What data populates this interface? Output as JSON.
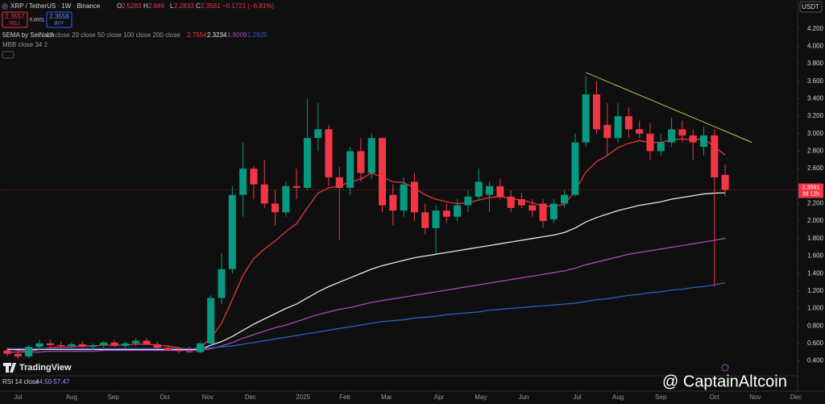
{
  "header": {
    "symbol": "XRP / TetherUS · 1W · Binance",
    "change": "−0.1721 (−6.81%)",
    "sell_price": "2.3557",
    "sell": "SELL",
    "spread": "0.0001",
    "buy_price": "2.3558",
    "buy": "BUY",
    "ema_label": "5EMA by SeiNach",
    "ema_params": "10 close 20 close 50 close 100 close 200 close",
    "mbb": "MBB close 34 2",
    "rsi": "RSI 14 close",
    "rsi_values": "44.50 57.47",
    "countdown": "3d 12h",
    "quote": "USDT",
    "brand": "TradingView",
    "watermark": "@ CaptainAltcoin",
    "o": "O",
    "h": "H",
    "l": "L",
    "c": "C"
  },
  "chart_data": {
    "type": "candlestick",
    "up_color": "#089981",
    "down_color": "#f23645",
    "grid": false,
    "open": [
      0.52,
      0.48,
      0.45,
      0.56,
      0.6,
      0.58,
      0.57,
      0.59,
      0.56,
      0.58,
      0.61,
      0.57,
      0.6,
      0.63,
      0.59,
      0.55,
      0.52,
      0.51,
      0.5,
      0.6,
      1.12,
      1.45,
      2.3,
      2.6,
      2.42,
      2.2,
      2.1,
      2.4,
      2.38,
      2.95,
      3.05,
      2.5,
      2.38,
      2.8,
      2.55,
      2.95,
      2.3,
      2.12,
      2.45,
      2.1,
      1.92,
      2.12,
      2.05,
      2.18,
      2.28,
      2.3,
      2.4,
      2.28,
      2.25,
      2.18,
      2.2,
      2.02,
      2.2,
      2.3,
      2.9,
      3.45,
      3.1,
      2.95,
      3.2,
      3.05,
      3.0,
      2.8,
      2.9,
      3.05,
      2.98,
      2.85,
      2.98,
      2.5283
    ],
    "high": [
      0.55,
      0.52,
      0.58,
      0.64,
      0.64,
      0.62,
      0.61,
      0.62,
      0.6,
      0.63,
      0.64,
      0.62,
      0.66,
      0.66,
      0.62,
      0.58,
      0.55,
      0.56,
      0.62,
      1.15,
      1.63,
      2.4,
      2.9,
      2.63,
      2.7,
      2.35,
      2.45,
      2.6,
      3.4,
      3.35,
      3.1,
      2.62,
      2.85,
      2.95,
      3.0,
      2.96,
      2.42,
      2.5,
      2.55,
      2.2,
      2.18,
      2.2,
      2.25,
      2.35,
      2.6,
      2.45,
      2.48,
      2.35,
      2.32,
      2.25,
      2.25,
      2.25,
      2.35,
      3.0,
      3.66,
      3.6,
      3.35,
      3.35,
      3.3,
      3.15,
      3.12,
      3.0,
      3.18,
      3.15,
      3.05,
      3.08,
      3.05,
      2.646
    ],
    "low": [
      0.45,
      0.42,
      0.43,
      0.52,
      0.55,
      0.54,
      0.53,
      0.55,
      0.52,
      0.55,
      0.56,
      0.54,
      0.57,
      0.58,
      0.54,
      0.51,
      0.49,
      0.49,
      0.49,
      0.58,
      1.05,
      1.4,
      2.05,
      2.25,
      2.15,
      1.95,
      2.05,
      2.25,
      2.35,
      2.8,
      2.4,
      1.78,
      2.3,
      2.45,
      2.48,
      2.1,
      1.95,
      2.05,
      2.0,
      1.85,
      1.62,
      1.98,
      2.0,
      2.1,
      2.25,
      2.1,
      2.25,
      2.1,
      2.15,
      2.05,
      1.92,
      1.98,
      2.15,
      2.28,
      2.85,
      3.0,
      2.75,
      2.9,
      2.95,
      2.95,
      2.7,
      2.75,
      2.85,
      2.9,
      2.7,
      2.75,
      1.25,
      2.2833
    ],
    "close": [
      0.48,
      0.45,
      0.56,
      0.6,
      0.58,
      0.57,
      0.59,
      0.56,
      0.58,
      0.61,
      0.57,
      0.6,
      0.63,
      0.59,
      0.55,
      0.52,
      0.51,
      0.5,
      0.6,
      1.12,
      1.45,
      2.3,
      2.6,
      2.42,
      2.2,
      2.1,
      2.4,
      2.38,
      2.95,
      3.05,
      2.5,
      2.38,
      2.8,
      2.55,
      2.95,
      2.18,
      2.12,
      2.42,
      2.1,
      1.92,
      2.12,
      2.05,
      2.18,
      2.28,
      2.45,
      2.4,
      2.28,
      2.15,
      2.18,
      2.12,
      2.0,
      2.2,
      2.3,
      2.9,
      3.45,
      3.05,
      2.95,
      3.2,
      3.05,
      3.0,
      2.8,
      2.9,
      3.05,
      2.98,
      2.9,
      2.98,
      2.5,
      2.3561
    ],
    "lines": [
      {
        "color": "#e53935",
        "values": [
          0.54,
          0.52,
          0.51,
          0.53,
          0.55,
          0.56,
          0.56,
          0.57,
          0.57,
          0.58,
          0.58,
          0.58,
          0.59,
          0.59,
          0.58,
          0.57,
          0.55,
          0.53,
          0.55,
          0.66,
          0.83,
          1.1,
          1.38,
          1.57,
          1.68,
          1.77,
          1.88,
          1.97,
          2.15,
          2.32,
          2.38,
          2.4,
          2.45,
          2.48,
          2.55,
          2.5,
          2.45,
          2.44,
          2.38,
          2.3,
          2.25,
          2.22,
          2.2,
          2.21,
          2.24,
          2.27,
          2.28,
          2.26,
          2.24,
          2.21,
          2.17,
          2.17,
          2.19,
          2.35,
          2.56,
          2.68,
          2.75,
          2.84,
          2.89,
          2.92,
          2.9,
          2.9,
          2.93,
          2.94,
          2.93,
          2.94,
          2.85,
          2.7554
        ]
      },
      {
        "color": "#e8e8e8",
        "values": [
          0.53,
          0.53,
          0.53,
          0.53,
          0.53,
          0.53,
          0.53,
          0.53,
          0.53,
          0.53,
          0.53,
          0.53,
          0.53,
          0.53,
          0.53,
          0.53,
          0.53,
          0.53,
          0.53,
          0.58,
          0.62,
          0.68,
          0.75,
          0.82,
          0.88,
          0.94,
          1.0,
          1.05,
          1.12,
          1.19,
          1.25,
          1.3,
          1.35,
          1.4,
          1.45,
          1.49,
          1.52,
          1.55,
          1.58,
          1.6,
          1.62,
          1.64,
          1.66,
          1.68,
          1.7,
          1.72,
          1.74,
          1.76,
          1.78,
          1.8,
          1.82,
          1.84,
          1.87,
          1.92,
          1.99,
          2.04,
          2.08,
          2.12,
          2.15,
          2.18,
          2.2,
          2.22,
          2.25,
          2.27,
          2.29,
          2.31,
          2.32,
          2.3234
        ]
      },
      {
        "color": "#ab47bc",
        "values": [
          0.5,
          0.5,
          0.5,
          0.5,
          0.51,
          0.51,
          0.51,
          0.51,
          0.51,
          0.52,
          0.52,
          0.52,
          0.52,
          0.52,
          0.52,
          0.52,
          0.52,
          0.52,
          0.52,
          0.54,
          0.57,
          0.61,
          0.66,
          0.7,
          0.74,
          0.78,
          0.81,
          0.85,
          0.89,
          0.93,
          0.96,
          0.99,
          1.01,
          1.04,
          1.07,
          1.09,
          1.11,
          1.13,
          1.15,
          1.17,
          1.19,
          1.21,
          1.23,
          1.25,
          1.27,
          1.29,
          1.31,
          1.33,
          1.35,
          1.37,
          1.39,
          1.41,
          1.43,
          1.46,
          1.5,
          1.53,
          1.56,
          1.59,
          1.62,
          1.64,
          1.66,
          1.68,
          1.7,
          1.72,
          1.74,
          1.76,
          1.78,
          1.8009
        ]
      },
      {
        "color": "#2f5fc4",
        "values": [
          0.54,
          0.54,
          0.54,
          0.54,
          0.54,
          0.54,
          0.54,
          0.54,
          0.54,
          0.54,
          0.54,
          0.54,
          0.54,
          0.54,
          0.54,
          0.54,
          0.54,
          0.54,
          0.54,
          0.55,
          0.56,
          0.57,
          0.59,
          0.61,
          0.63,
          0.65,
          0.67,
          0.69,
          0.71,
          0.73,
          0.75,
          0.77,
          0.79,
          0.81,
          0.83,
          0.85,
          0.86,
          0.87,
          0.89,
          0.9,
          0.91,
          0.93,
          0.94,
          0.95,
          0.96,
          0.98,
          0.99,
          1.0,
          1.01,
          1.02,
          1.03,
          1.04,
          1.05,
          1.06,
          1.08,
          1.1,
          1.11,
          1.13,
          1.15,
          1.16,
          1.18,
          1.19,
          1.21,
          1.22,
          1.24,
          1.25,
          1.27,
          1.2925
        ]
      }
    ],
    "trendline": {
      "color": "#c9c24a",
      "x": [
        54,
        69.5
      ],
      "y": [
        3.7,
        2.9
      ]
    },
    "xlim": [
      -0.68,
      73.76
    ],
    "ylim": [
      0.1,
      4.53
    ],
    "yticks": [
      {
        "value": 4.2,
        "label": "4.200"
      },
      {
        "value": 4.0,
        "label": "4.000"
      },
      {
        "value": 3.8,
        "label": "3.800"
      },
      {
        "value": 3.6,
        "label": "3.600"
      },
      {
        "value": 3.4,
        "label": "3.400"
      },
      {
        "value": 3.2,
        "label": "3.200"
      },
      {
        "value": 3.0,
        "label": "3.000"
      },
      {
        "value": 2.8,
        "label": "2.800"
      },
      {
        "value": 2.6,
        "label": "2.600"
      },
      {
        "value": 2.2,
        "label": "2.200"
      },
      {
        "value": 2.0,
        "label": "2.000"
      },
      {
        "value": 1.8,
        "label": "1.800"
      },
      {
        "value": 1.6,
        "label": "1.600"
      },
      {
        "value": 1.4,
        "label": "1.400"
      },
      {
        "value": 1.2,
        "label": "1.200"
      },
      {
        "value": 1.0,
        "label": "1.000"
      },
      {
        "value": 0.8,
        "label": "0.800"
      },
      {
        "value": 0.6,
        "label": "0.600"
      },
      {
        "value": 0.4,
        "label": "0.400"
      }
    ],
    "xticks": [
      {
        "value": 1.0,
        "label": "Jul"
      },
      {
        "value": 6.0,
        "label": "Aug"
      },
      {
        "value": 9.9,
        "label": "Sep"
      },
      {
        "value": 14.7,
        "label": "Oct"
      },
      {
        "value": 18.7,
        "label": "Nov"
      },
      {
        "value": 22.7,
        "label": "Dec"
      },
      {
        "value": 27.6,
        "label": "2025"
      },
      {
        "value": 31.5,
        "label": "Feb"
      },
      {
        "value": 35.4,
        "label": "Mar"
      },
      {
        "value": 40.3,
        "label": "Apr"
      },
      {
        "value": 44.2,
        "label": "May"
      },
      {
        "value": 48.2,
        "label": "Jun"
      },
      {
        "value": 53.2,
        "label": "Jul"
      },
      {
        "value": 57.0,
        "label": "Aug"
      },
      {
        "value": 61.0,
        "label": "Sep"
      },
      {
        "value": 66.0,
        "label": "Oct"
      },
      {
        "value": 69.8,
        "label": "Nov"
      },
      {
        "value": 73.6,
        "label": "Dec"
      }
    ]
  }
}
